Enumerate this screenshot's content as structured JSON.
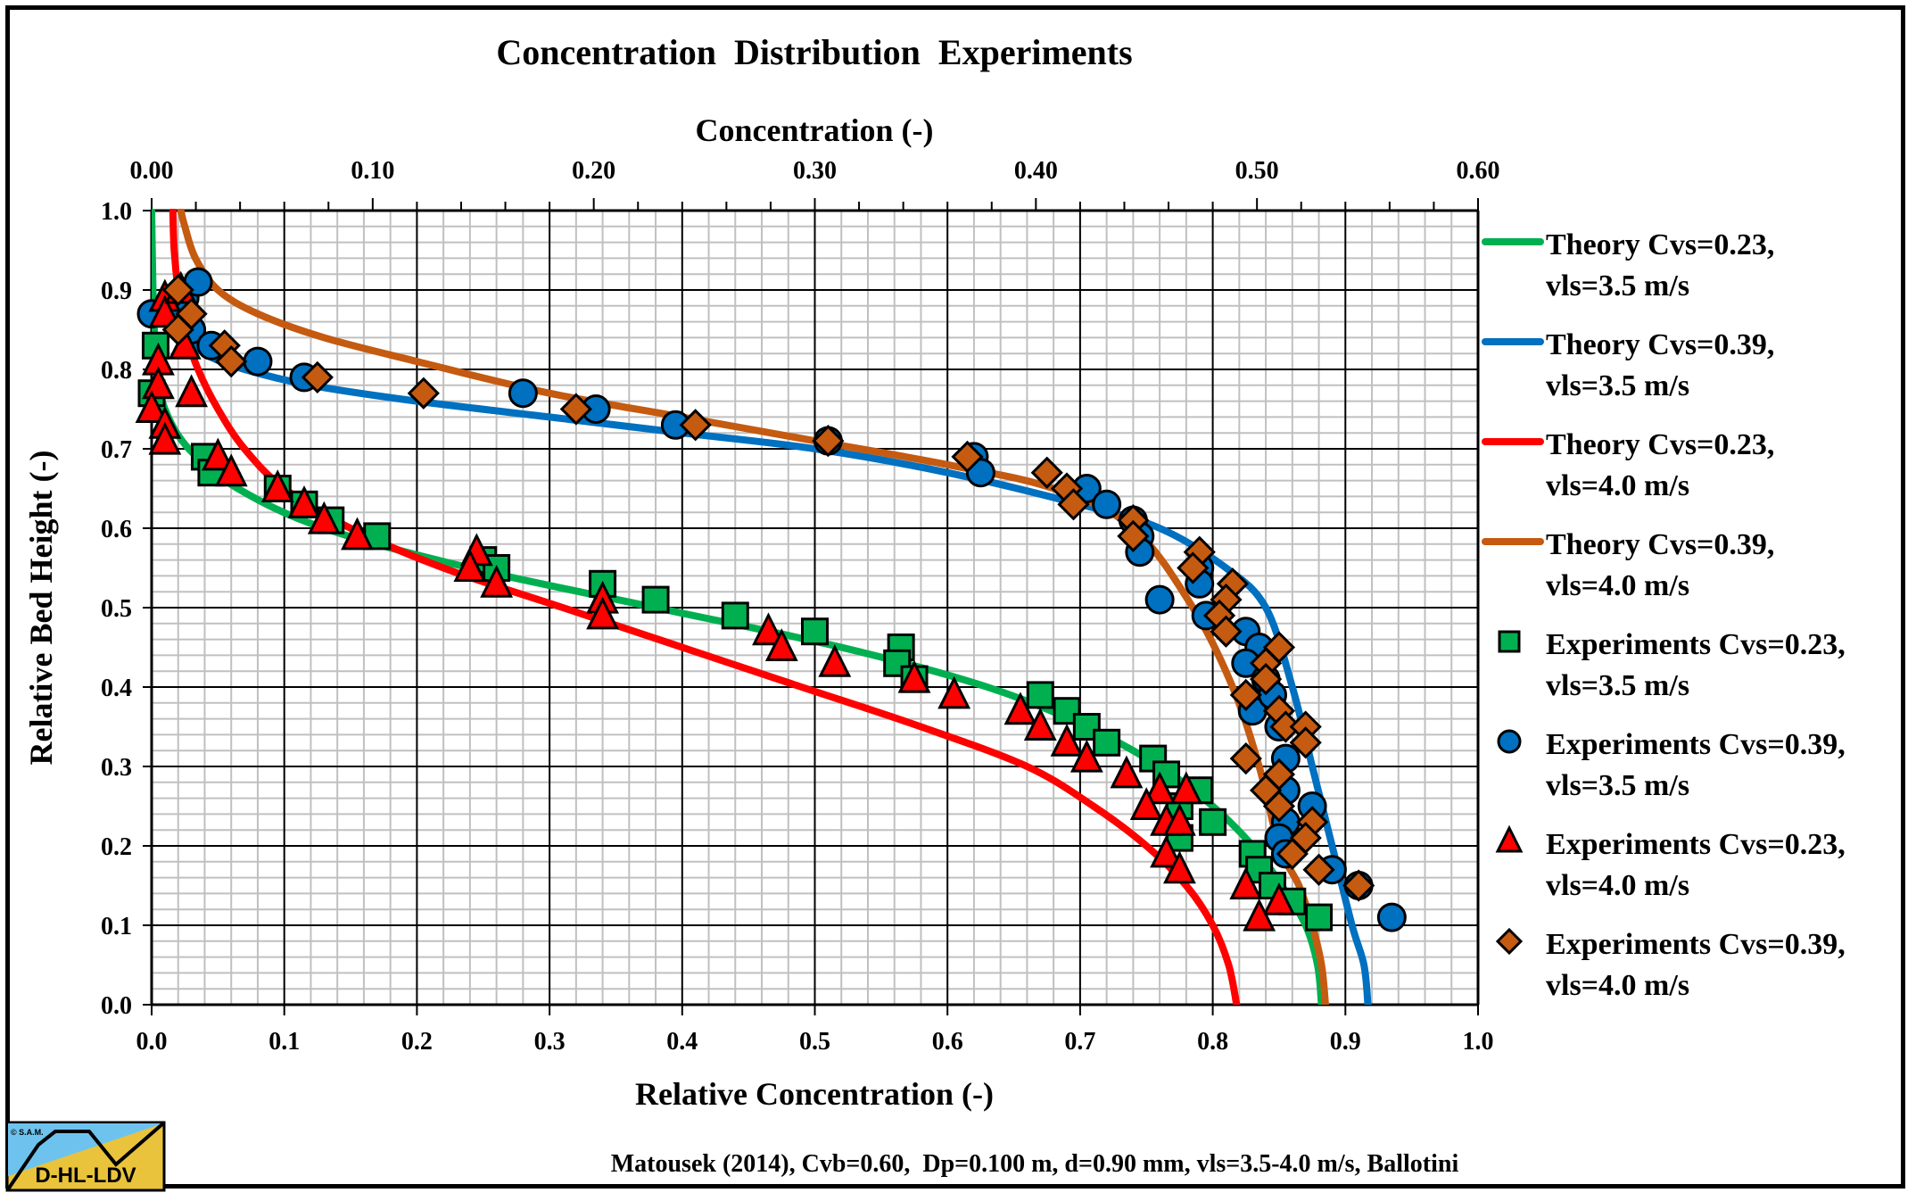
{
  "chart_data": {
    "type": "scatter",
    "title": "Concentration  Distribution  Experiments",
    "xlabel": "Relative Concentration (-)",
    "x2label": "Concentration (-)",
    "ylabel": "Relative Bed Height (-)",
    "footnote": "Matousek (2014), Cvb=0.60,  Dp=0.100 m, d=0.90 mm, vls=3.5-4.0 m/s, Ballotini",
    "xlim": [
      0,
      1.0
    ],
    "ylim": [
      0,
      1.0
    ],
    "x2lim": [
      0,
      0.6
    ],
    "grid": true,
    "legend_position": "right",
    "x_ticks": [
      "0.0",
      "0.1",
      "0.2",
      "0.3",
      "0.4",
      "0.5",
      "0.6",
      "0.7",
      "0.8",
      "0.9",
      "1.0"
    ],
    "x2_ticks": [
      "0.00",
      "0.10",
      "0.20",
      "0.30",
      "0.40",
      "0.50",
      "0.60"
    ],
    "y_ticks": [
      "0.0",
      "0.1",
      "0.2",
      "0.3",
      "0.4",
      "0.5",
      "0.6",
      "0.7",
      "0.8",
      "0.9",
      "1.0"
    ],
    "lines": [
      {
        "name": "Theory Cvs=0.23, vls=3.5 m/s",
        "label1": "Theory Cvs=0.23,",
        "label2": "vls=3.5 m/s",
        "color": "#00B050",
        "points": [
          [
            0.882,
            0.0
          ],
          [
            0.879,
            0.05
          ],
          [
            0.87,
            0.1
          ],
          [
            0.852,
            0.15
          ],
          [
            0.83,
            0.2
          ],
          [
            0.8,
            0.25
          ],
          [
            0.76,
            0.3
          ],
          [
            0.705,
            0.35
          ],
          [
            0.63,
            0.4
          ],
          [
            0.52,
            0.45
          ],
          [
            0.38,
            0.5
          ],
          [
            0.24,
            0.55
          ],
          [
            0.13,
            0.6
          ],
          [
            0.065,
            0.65
          ],
          [
            0.028,
            0.7
          ],
          [
            0.01,
            0.75
          ],
          [
            0.004,
            0.8
          ],
          [
            0.002,
            0.85
          ],
          [
            0.001,
            0.9
          ],
          [
            0.0,
            1.0
          ]
        ]
      },
      {
        "name": "Theory Cvs=0.39, vls=3.5 m/s",
        "label1": "Theory Cvs=0.39,",
        "label2": "vls=3.5 m/s",
        "color": "#0070C0",
        "points": [
          [
            0.917,
            0.0
          ],
          [
            0.914,
            0.05
          ],
          [
            0.905,
            0.1
          ],
          [
            0.89,
            0.2
          ],
          [
            0.875,
            0.3
          ],
          [
            0.86,
            0.4
          ],
          [
            0.84,
            0.5
          ],
          [
            0.81,
            0.55
          ],
          [
            0.76,
            0.6
          ],
          [
            0.7,
            0.63
          ],
          [
            0.6,
            0.67
          ],
          [
            0.5,
            0.7
          ],
          [
            0.4,
            0.72
          ],
          [
            0.3,
            0.74
          ],
          [
            0.2,
            0.76
          ],
          [
            0.12,
            0.78
          ],
          [
            0.07,
            0.8
          ],
          [
            0.04,
            0.82
          ],
          [
            0.025,
            0.85
          ],
          [
            0.018,
            0.88
          ],
          [
            0.015,
            0.9
          ]
        ]
      },
      {
        "name": "Theory Cvs=0.23, vls=4.0 m/s",
        "label1": "Theory Cvs=0.23,",
        "label2": "vls=4.0 m/s",
        "color": "#FF0000",
        "points": [
          [
            0.818,
            0.0
          ],
          [
            0.812,
            0.05
          ],
          [
            0.8,
            0.1
          ],
          [
            0.78,
            0.15
          ],
          [
            0.75,
            0.2
          ],
          [
            0.71,
            0.25
          ],
          [
            0.66,
            0.3
          ],
          [
            0.58,
            0.35
          ],
          [
            0.49,
            0.4
          ],
          [
            0.4,
            0.45
          ],
          [
            0.31,
            0.5
          ],
          [
            0.22,
            0.55
          ],
          [
            0.15,
            0.6
          ],
          [
            0.1,
            0.65
          ],
          [
            0.07,
            0.7
          ],
          [
            0.05,
            0.75
          ],
          [
            0.035,
            0.8
          ],
          [
            0.025,
            0.85
          ],
          [
            0.02,
            0.9
          ],
          [
            0.017,
            0.95
          ],
          [
            0.016,
            1.0
          ]
        ]
      },
      {
        "name": "Theory Cvs=0.39, vls=4.0 m/s",
        "label1": "Theory Cvs=0.39,",
        "label2": "vls=4.0 m/s",
        "color": "#C55A11",
        "points": [
          [
            0.885,
            0.0
          ],
          [
            0.882,
            0.05
          ],
          [
            0.875,
            0.1
          ],
          [
            0.865,
            0.15
          ],
          [
            0.85,
            0.2
          ],
          [
            0.835,
            0.3
          ],
          [
            0.815,
            0.4
          ],
          [
            0.785,
            0.5
          ],
          [
            0.74,
            0.6
          ],
          [
            0.68,
            0.65
          ],
          [
            0.6,
            0.68
          ],
          [
            0.5,
            0.71
          ],
          [
            0.4,
            0.74
          ],
          [
            0.3,
            0.77
          ],
          [
            0.2,
            0.81
          ],
          [
            0.13,
            0.84
          ],
          [
            0.08,
            0.87
          ],
          [
            0.05,
            0.9
          ],
          [
            0.033,
            0.94
          ],
          [
            0.025,
            0.98
          ],
          [
            0.022,
            1.0
          ]
        ]
      }
    ],
    "series": [
      {
        "name": "Experiments Cvs=0.23, vls=3.5 m/s",
        "label1": "Experiments Cvs=0.23,",
        "label2": "vls=3.5 m/s",
        "marker": "square",
        "color": "#00B050",
        "points": [
          [
            0.003,
            0.83
          ],
          [
            0.0,
            0.77
          ],
          [
            0.04,
            0.69
          ],
          [
            0.045,
            0.67
          ],
          [
            0.095,
            0.65
          ],
          [
            0.115,
            0.63
          ],
          [
            0.135,
            0.61
          ],
          [
            0.17,
            0.59
          ],
          [
            0.25,
            0.56
          ],
          [
            0.26,
            0.55
          ],
          [
            0.34,
            0.53
          ],
          [
            0.38,
            0.51
          ],
          [
            0.44,
            0.49
          ],
          [
            0.5,
            0.47
          ],
          [
            0.565,
            0.45
          ],
          [
            0.562,
            0.43
          ],
          [
            0.575,
            0.41
          ],
          [
            0.67,
            0.39
          ],
          [
            0.69,
            0.37
          ],
          [
            0.705,
            0.35
          ],
          [
            0.72,
            0.33
          ],
          [
            0.755,
            0.31
          ],
          [
            0.765,
            0.29
          ],
          [
            0.775,
            0.25
          ],
          [
            0.79,
            0.27
          ],
          [
            0.775,
            0.21
          ],
          [
            0.8,
            0.23
          ],
          [
            0.83,
            0.19
          ],
          [
            0.835,
            0.17
          ],
          [
            0.845,
            0.15
          ],
          [
            0.86,
            0.13
          ],
          [
            0.88,
            0.11
          ]
        ]
      },
      {
        "name": "Experiments Cvs=0.39, vls=3.5 m/s",
        "label1": "Experiments Cvs=0.39,",
        "label2": "vls=3.5 m/s",
        "color": "#0070C0",
        "marker": "circle",
        "points": [
          [
            0.0,
            0.87
          ],
          [
            0.025,
            0.89
          ],
          [
            0.035,
            0.91
          ],
          [
            0.03,
            0.85
          ],
          [
            0.045,
            0.83
          ],
          [
            0.08,
            0.81
          ],
          [
            0.115,
            0.79
          ],
          [
            0.28,
            0.77
          ],
          [
            0.335,
            0.75
          ],
          [
            0.395,
            0.73
          ],
          [
            0.51,
            0.71
          ],
          [
            0.62,
            0.69
          ],
          [
            0.625,
            0.67
          ],
          [
            0.705,
            0.65
          ],
          [
            0.72,
            0.63
          ],
          [
            0.74,
            0.61
          ],
          [
            0.745,
            0.59
          ],
          [
            0.745,
            0.57
          ],
          [
            0.76,
            0.51
          ],
          [
            0.79,
            0.55
          ],
          [
            0.79,
            0.53
          ],
          [
            0.795,
            0.49
          ],
          [
            0.825,
            0.47
          ],
          [
            0.835,
            0.45
          ],
          [
            0.825,
            0.43
          ],
          [
            0.84,
            0.41
          ],
          [
            0.83,
            0.37
          ],
          [
            0.845,
            0.39
          ],
          [
            0.85,
            0.35
          ],
          [
            0.855,
            0.31
          ],
          [
            0.855,
            0.27
          ],
          [
            0.875,
            0.25
          ],
          [
            0.855,
            0.23
          ],
          [
            0.85,
            0.21
          ],
          [
            0.855,
            0.19
          ],
          [
            0.89,
            0.17
          ],
          [
            0.91,
            0.15
          ],
          [
            0.935,
            0.11
          ]
        ]
      },
      {
        "name": "Experiments Cvs=0.23, vls=4.0 m/s",
        "label1": "Experiments Cvs=0.23,",
        "label2": "vls=4.0 m/s",
        "color": "#FF0000",
        "marker": "triangle",
        "points": [
          [
            0.01,
            0.89
          ],
          [
            0.01,
            0.87
          ],
          [
            0.022,
            0.9
          ],
          [
            0.025,
            0.83
          ],
          [
            0.005,
            0.81
          ],
          [
            0.005,
            0.78
          ],
          [
            0.03,
            0.77
          ],
          [
            0.0,
            0.75
          ],
          [
            0.01,
            0.73
          ],
          [
            0.01,
            0.71
          ],
          [
            0.05,
            0.69
          ],
          [
            0.06,
            0.67
          ],
          [
            0.095,
            0.65
          ],
          [
            0.115,
            0.63
          ],
          [
            0.13,
            0.61
          ],
          [
            0.155,
            0.59
          ],
          [
            0.245,
            0.57
          ],
          [
            0.24,
            0.55
          ],
          [
            0.26,
            0.53
          ],
          [
            0.34,
            0.51
          ],
          [
            0.34,
            0.49
          ],
          [
            0.465,
            0.47
          ],
          [
            0.475,
            0.45
          ],
          [
            0.515,
            0.43
          ],
          [
            0.575,
            0.41
          ],
          [
            0.605,
            0.39
          ],
          [
            0.655,
            0.37
          ],
          [
            0.67,
            0.35
          ],
          [
            0.69,
            0.33
          ],
          [
            0.705,
            0.31
          ],
          [
            0.735,
            0.29
          ],
          [
            0.76,
            0.27
          ],
          [
            0.78,
            0.27
          ],
          [
            0.75,
            0.25
          ],
          [
            0.765,
            0.23
          ],
          [
            0.775,
            0.23
          ],
          [
            0.765,
            0.19
          ],
          [
            0.775,
            0.17
          ],
          [
            0.825,
            0.15
          ],
          [
            0.85,
            0.13
          ],
          [
            0.835,
            0.11
          ]
        ]
      },
      {
        "name": "Experiments Cvs=0.39, vls=4.0 m/s",
        "label1": "Experiments Cvs=0.39,",
        "label2": "vls=4.0 m/s",
        "color": "#C55A11",
        "marker": "diamond",
        "points": [
          [
            0.02,
            0.9
          ],
          [
            0.03,
            0.87
          ],
          [
            0.02,
            0.85
          ],
          [
            0.055,
            0.83
          ],
          [
            0.06,
            0.81
          ],
          [
            0.125,
            0.79
          ],
          [
            0.205,
            0.77
          ],
          [
            0.32,
            0.75
          ],
          [
            0.41,
            0.73
          ],
          [
            0.51,
            0.71
          ],
          [
            0.615,
            0.69
          ],
          [
            0.675,
            0.67
          ],
          [
            0.69,
            0.65
          ],
          [
            0.695,
            0.63
          ],
          [
            0.74,
            0.61
          ],
          [
            0.74,
            0.59
          ],
          [
            0.79,
            0.57
          ],
          [
            0.785,
            0.55
          ],
          [
            0.815,
            0.53
          ],
          [
            0.81,
            0.51
          ],
          [
            0.805,
            0.49
          ],
          [
            0.81,
            0.47
          ],
          [
            0.85,
            0.45
          ],
          [
            0.84,
            0.43
          ],
          [
            0.84,
            0.41
          ],
          [
            0.825,
            0.39
          ],
          [
            0.85,
            0.37
          ],
          [
            0.855,
            0.35
          ],
          [
            0.87,
            0.35
          ],
          [
            0.87,
            0.33
          ],
          [
            0.825,
            0.31
          ],
          [
            0.85,
            0.29
          ],
          [
            0.84,
            0.27
          ],
          [
            0.85,
            0.25
          ],
          [
            0.875,
            0.23
          ],
          [
            0.87,
            0.21
          ],
          [
            0.86,
            0.19
          ],
          [
            0.88,
            0.17
          ],
          [
            0.91,
            0.15
          ]
        ]
      }
    ]
  },
  "logo": {
    "copyright": "© S.A.M.",
    "text": "D-HL-LDV",
    "sky_color": "#6EC3EE",
    "sand_color": "#E9C33B"
  }
}
